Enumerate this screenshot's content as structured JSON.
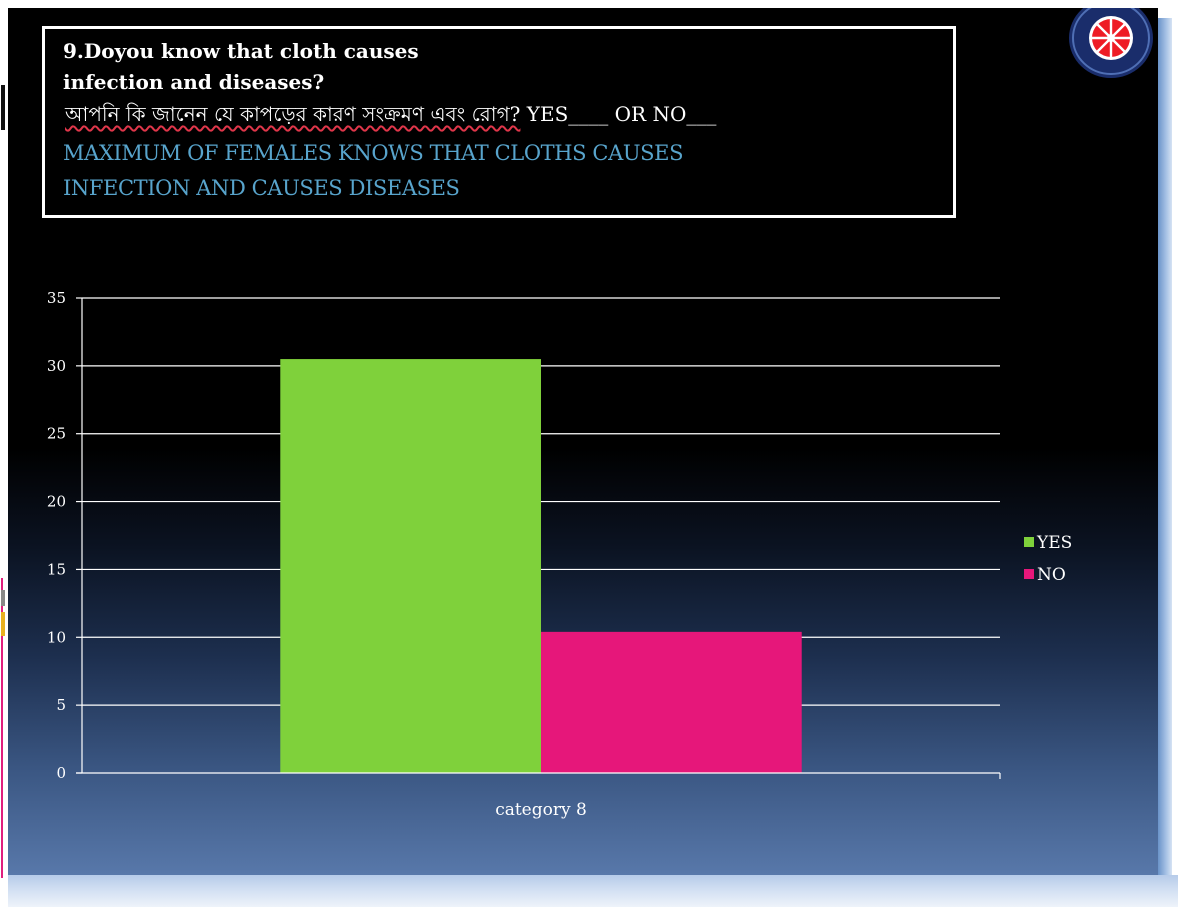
{
  "question": {
    "line1": "9.Doyou know that cloth causes",
    "line2": "infection and diseases?",
    "line3_bengali": "আপনি কি জানেন যে কাপড়ের কারণ সংক্রমণ এবং রোগ?",
    "line3_suffix": " YES____ OR NO___",
    "line4": "MAXIMUM OF FEMALES KNOWS THAT CLOTHS CAUSES",
    "line5": "INFECTION AND CAUSES DISEASES"
  },
  "logo": {
    "icon": "wheel-emblem-icon"
  },
  "colors": {
    "yes": "#7fd13b",
    "no": "#e6177a",
    "accent_text": "#58a4cc"
  },
  "chart_data": {
    "type": "bar",
    "categories": [
      "category 8"
    ],
    "series": [
      {
        "name": "YES",
        "values": [
          30.5
        ]
      },
      {
        "name": "NO",
        "values": [
          10.4
        ]
      }
    ],
    "ylim": [
      0,
      35
    ],
    "yticks": [
      0,
      5,
      10,
      15,
      20,
      25,
      30,
      35
    ],
    "grid": true,
    "legend": "right"
  }
}
